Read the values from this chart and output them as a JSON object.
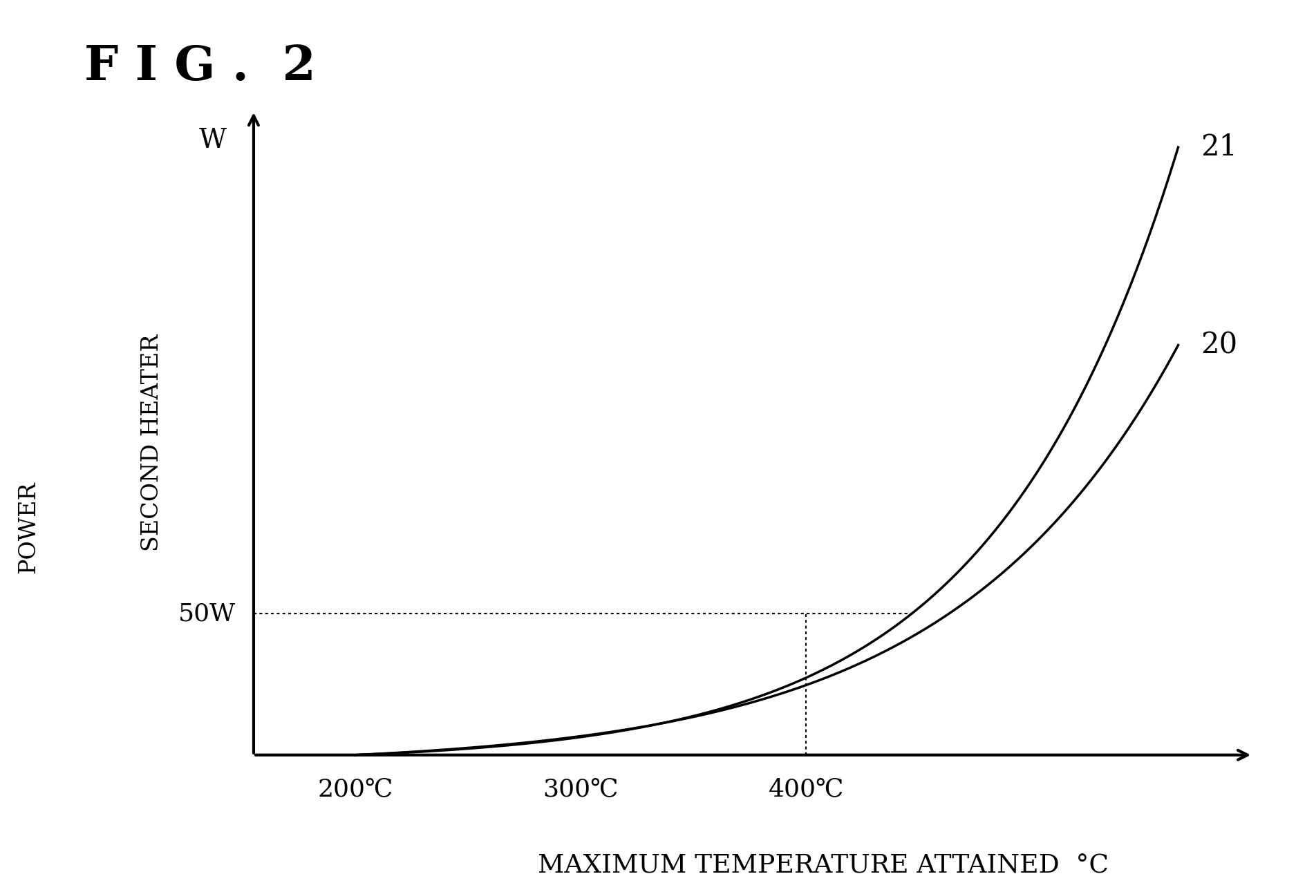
{
  "title": "F I G .  2",
  "ylabel_line1": "SECOND HEATER",
  "ylabel_line2": "POWER",
  "ylabel_unit": "W",
  "xlabel": "MAXIMUM TEMPERATURE ATTAINED  °C",
  "background_color": "#ffffff",
  "curve21_label": "21",
  "curve20_label": "20",
  "ref_power_label": "50W",
  "ref_power_y": 50,
  "x_ticks": [
    200,
    300,
    400
  ],
  "x_tick_labels": [
    "200℃",
    "300℃",
    "400℃"
  ],
  "xlim": [
    100,
    600
  ],
  "ylim": [
    -5,
    230
  ],
  "curve_start_x": 200,
  "curve20_end_y": 145,
  "curve21_end_y": 215,
  "x_end_curve": 565,
  "dotted_x": 400,
  "dotted_y": 50,
  "ax_origin_x": 155,
  "ax_origin_y": 0
}
